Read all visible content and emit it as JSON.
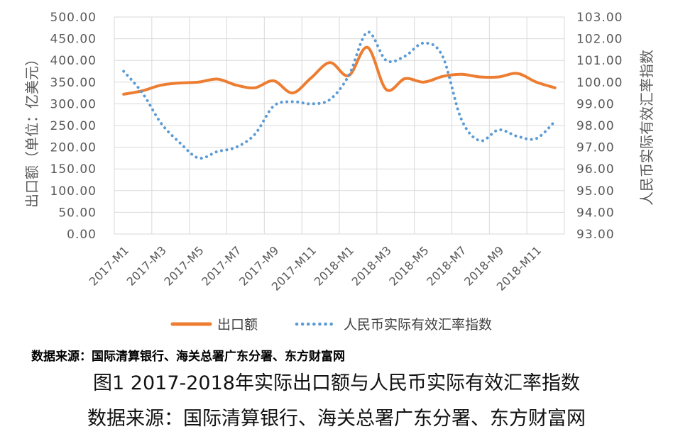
{
  "chart_data": {
    "type": "line",
    "categories": [
      "2017-M1",
      "2017-M2",
      "2017-M3",
      "2017-M4",
      "2017-M5",
      "2017-M6",
      "2017-M7",
      "2017-M8",
      "2017-M9",
      "2017-M10",
      "2017-M11",
      "2017-M12",
      "2018-M1",
      "2018-M2",
      "2018-M3",
      "2018-M4",
      "2018-M5",
      "2018-M6",
      "2018-M7",
      "2018-M8",
      "2018-M9",
      "2018-M10",
      "2018-M11",
      "2018-M12"
    ],
    "tick_labels": [
      "2017-M1",
      "2017-M3",
      "2017-M5",
      "2017-M7",
      "2017-M9",
      "2017-M11",
      "2018-M1",
      "2018-M3",
      "2018-M5",
      "2018-M7",
      "2018-M9",
      "2018-M11"
    ],
    "series": [
      {
        "name": "出口额",
        "axis": "left",
        "color": "#ED7D31",
        "style": "solid",
        "values": [
          322,
          330,
          343,
          348,
          350,
          357,
          343,
          337,
          353,
          325,
          360,
          395,
          365,
          430,
          333,
          358,
          350,
          363,
          368,
          362,
          362,
          370,
          350,
          337
        ]
      },
      {
        "name": "人民币实际有效汇率指数",
        "axis": "right",
        "color": "#5B9BD5",
        "style": "dotted",
        "values": [
          100.5,
          99.5,
          98.1,
          97.2,
          96.5,
          96.8,
          97.0,
          97.6,
          98.9,
          99.1,
          99.0,
          99.2,
          100.3,
          102.3,
          101.0,
          101.2,
          101.8,
          101.2,
          98.3,
          97.3,
          97.8,
          97.5,
          97.4,
          98.2
        ]
      }
    ],
    "ylabel_left": "出口额（单位：亿美元）",
    "ylabel_right": "人民币实际有效汇率指数",
    "ylim_left": [
      0,
      500
    ],
    "ylim_right": [
      93,
      103
    ],
    "yticks_left": [
      "0.00",
      "50.00",
      "100.00",
      "150.00",
      "200.00",
      "250.00",
      "300.00",
      "350.00",
      "400.00",
      "450.00",
      "500.00"
    ],
    "yticks_right": [
      "93.00",
      "94.00",
      "95.00",
      "96.00",
      "97.00",
      "98.00",
      "99.00",
      "100.00",
      "101.00",
      "102.00",
      "103.00"
    ],
    "grid": true,
    "legend_position": "bottom"
  },
  "source_small": "数据来源：国际清算银行、海关总署广东分署、东方财富网",
  "caption": "图1 2017-2018年实际出口额与人民币实际有效汇率指数",
  "source_big": "数据来源：国际清算银行、海关总署广东分署、东方财富网"
}
